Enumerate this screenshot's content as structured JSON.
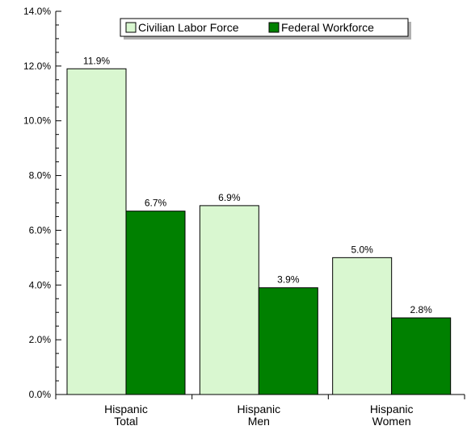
{
  "chart_data": {
    "type": "bar",
    "categories": [
      [
        "Hispanic",
        "Total"
      ],
      [
        "Hispanic",
        "Men"
      ],
      [
        "Hispanic",
        "Women"
      ]
    ],
    "series": [
      {
        "name": "Civilian Labor Force",
        "values": [
          11.9,
          6.9,
          5.0
        ],
        "labels": [
          "11.9%",
          "6.9%",
          "5.0%"
        ],
        "color": "#d9f7d0"
      },
      {
        "name": "Federal Workforce",
        "values": [
          6.7,
          3.9,
          2.8
        ],
        "labels": [
          "6.7%",
          "3.9%",
          "2.8%"
        ],
        "color": "#008000"
      }
    ],
    "yticks": [
      "0.0%",
      "2.0%",
      "4.0%",
      "6.0%",
      "8.0%",
      "10.0%",
      "12.0%",
      "14.0%"
    ],
    "ylim": [
      0,
      14
    ],
    "legend": "top-right",
    "grid": false
  }
}
